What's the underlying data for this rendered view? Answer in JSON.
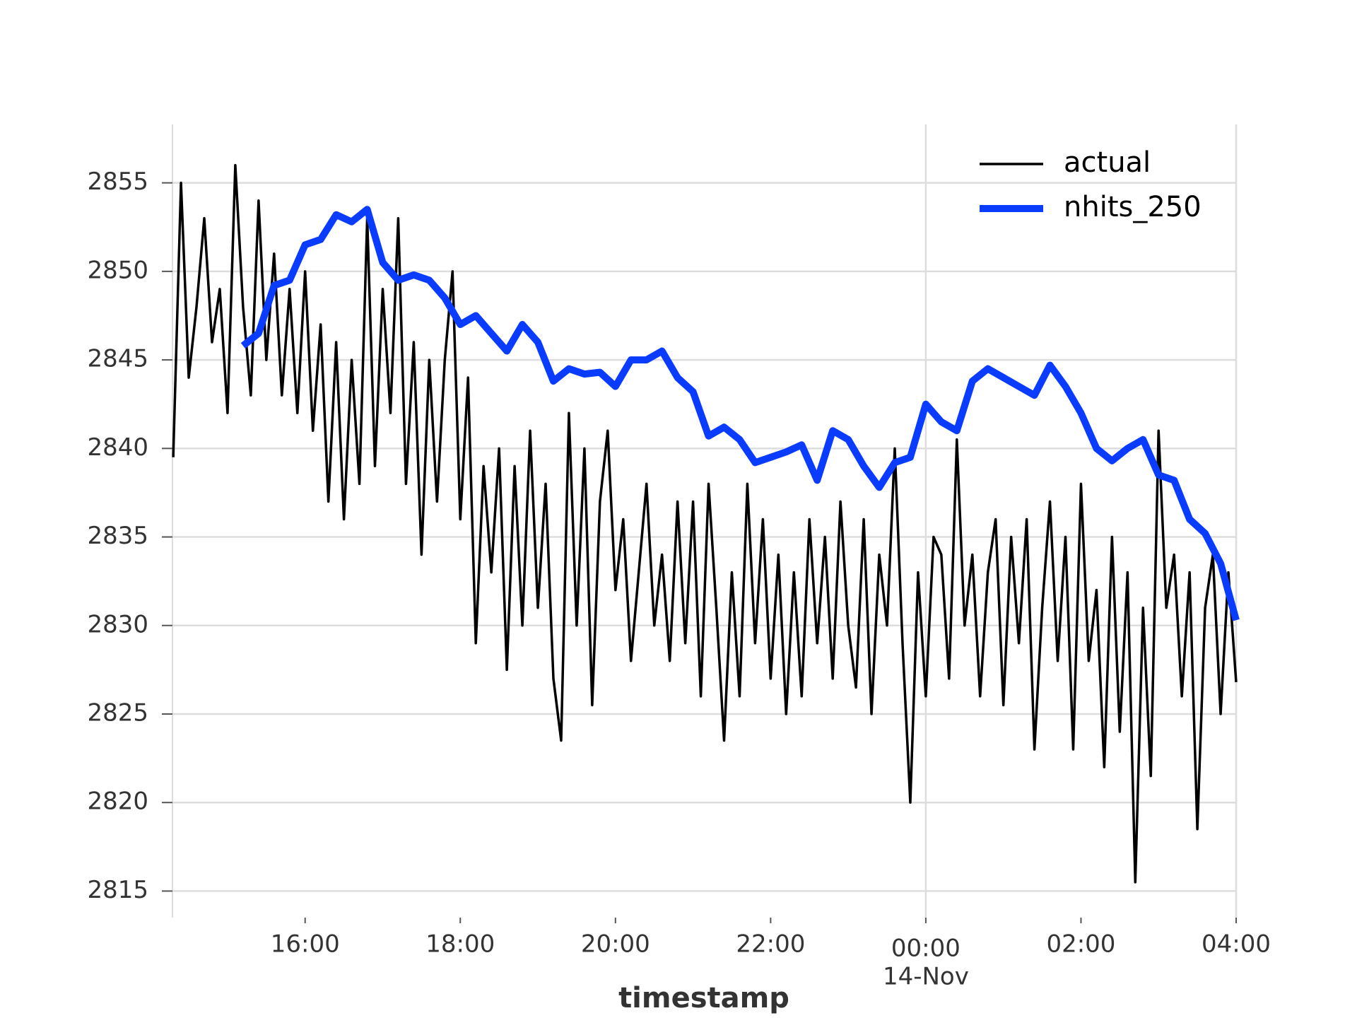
{
  "chart_data": {
    "type": "line",
    "xlabel": "timestamp",
    "xlim": [
      14.29,
      28.0
    ],
    "ylim": [
      2813.5,
      2858.3
    ],
    "xticks": [
      {
        "value": 16,
        "label": "16:00"
      },
      {
        "value": 18,
        "label": "18:00"
      },
      {
        "value": 20,
        "label": "20:00"
      },
      {
        "value": 22,
        "label": "22:00"
      },
      {
        "value": 24,
        "label": "00:00",
        "sublabel": "14-Nov"
      },
      {
        "value": 26,
        "label": "02:00"
      },
      {
        "value": 28,
        "label": "04:00"
      }
    ],
    "yticks": [
      2815,
      2820,
      2825,
      2830,
      2835,
      2840,
      2845,
      2850,
      2855
    ],
    "grid": true,
    "legend": "upper right",
    "series": [
      {
        "name": "actual",
        "color": "#000000",
        "x": [
          14.3,
          14.4,
          14.5,
          14.6,
          14.7,
          14.8,
          14.9,
          15.0,
          15.1,
          15.2,
          15.3,
          15.4,
          15.5,
          15.6,
          15.7,
          15.8,
          15.9,
          16.0,
          16.1,
          16.2,
          16.3,
          16.4,
          16.5,
          16.6,
          16.7,
          16.8,
          16.9,
          17.0,
          17.1,
          17.2,
          17.3,
          17.4,
          17.5,
          17.6,
          17.7,
          17.8,
          17.9,
          18.0,
          18.1,
          18.2,
          18.3,
          18.4,
          18.5,
          18.6,
          18.7,
          18.8,
          18.9,
          19.0,
          19.1,
          19.2,
          19.3,
          19.4,
          19.5,
          19.6,
          19.7,
          19.8,
          19.9,
          20.0,
          20.1,
          20.2,
          20.3,
          20.4,
          20.5,
          20.6,
          20.7,
          20.8,
          20.9,
          21.0,
          21.1,
          21.2,
          21.3,
          21.4,
          21.5,
          21.6,
          21.7,
          21.8,
          21.9,
          22.0,
          22.1,
          22.2,
          22.3,
          22.4,
          22.5,
          22.6,
          22.7,
          22.8,
          22.9,
          23.0,
          23.1,
          23.2,
          23.3,
          23.4,
          23.5,
          23.6,
          23.7,
          23.8,
          23.9,
          24.0,
          24.1,
          24.2,
          24.3,
          24.4,
          24.5,
          24.6,
          24.7,
          24.8,
          24.9,
          25.0,
          25.1,
          25.2,
          25.3,
          25.4,
          25.5,
          25.6,
          25.7,
          25.8,
          25.9,
          26.0,
          26.1,
          26.2,
          26.3,
          26.4,
          26.5,
          26.6,
          26.7,
          26.8,
          26.9,
          27.0,
          27.1,
          27.2,
          27.3,
          27.4,
          27.5,
          27.6,
          27.7,
          27.8,
          27.9,
          28.0
        ],
        "values": [
          2839.5,
          2855,
          2844,
          2848,
          2853,
          2846,
          2849,
          2842,
          2856,
          2848,
          2843,
          2854,
          2845,
          2851,
          2843,
          2849,
          2842,
          2850,
          2841,
          2847,
          2837,
          2846,
          2836,
          2845,
          2838,
          2853,
          2839,
          2849,
          2842,
          2853,
          2838,
          2846,
          2834,
          2845,
          2837,
          2845,
          2850,
          2836,
          2844,
          2829,
          2839,
          2833,
          2840,
          2827.5,
          2839,
          2830,
          2841,
          2831,
          2838,
          2827,
          2823.5,
          2842,
          2830,
          2840,
          2825.5,
          2837,
          2841,
          2832,
          2836,
          2828,
          2833,
          2838,
          2830,
          2834,
          2828,
          2837,
          2829,
          2837,
          2826,
          2838,
          2831,
          2823.5,
          2833,
          2826,
          2838,
          2829,
          2836,
          2827,
          2834,
          2825,
          2833,
          2826,
          2836,
          2829,
          2835,
          2827,
          2837,
          2830,
          2826.5,
          2836,
          2825,
          2834,
          2830,
          2840,
          2829,
          2820,
          2833,
          2826,
          2835,
          2834,
          2827,
          2840.5,
          2830,
          2834,
          2826,
          2833,
          2836,
          2825.5,
          2835,
          2829,
          2836,
          2823,
          2831,
          2837,
          2828,
          2835,
          2823,
          2838,
          2828,
          2832,
          2822,
          2835,
          2824,
          2833,
          2815.5,
          2831,
          2821.5,
          2841,
          2831,
          2834,
          2826,
          2833,
          2818.5,
          2831,
          2834,
          2825,
          2833,
          2826.8
        ]
      },
      {
        "name": "nhits_250",
        "color": "#0a3cff",
        "x": [
          15.2,
          15.4,
          15.6,
          15.8,
          16.0,
          16.2,
          16.4,
          16.6,
          16.8,
          17.0,
          17.2,
          17.4,
          17.6,
          17.8,
          18.0,
          18.2,
          18.4,
          18.6,
          18.8,
          19.0,
          19.2,
          19.4,
          19.6,
          19.8,
          20.0,
          20.2,
          20.4,
          20.6,
          20.8,
          21.0,
          21.2,
          21.4,
          21.6,
          21.8,
          22.0,
          22.2,
          22.4,
          22.6,
          22.8,
          23.0,
          23.2,
          23.4,
          23.6,
          23.8,
          24.0,
          24.2,
          24.4,
          24.6,
          24.8,
          25.0,
          25.2,
          25.4,
          25.6,
          25.8,
          26.0,
          26.2,
          26.4,
          26.6,
          26.8,
          27.0,
          27.2,
          27.4,
          27.6,
          27.8,
          28.0
        ],
        "values": [
          2845.8,
          2846.5,
          2849.2,
          2849.5,
          2851.5,
          2851.8,
          2853.2,
          2852.8,
          2853.5,
          2850.5,
          2849.5,
          2849.8,
          2849.5,
          2848.5,
          2847,
          2847.5,
          2846.5,
          2845.5,
          2847,
          2846,
          2843.8,
          2844.5,
          2844.2,
          2844.3,
          2843.5,
          2845,
          2845,
          2845.5,
          2844,
          2843.2,
          2840.7,
          2841.2,
          2840.5,
          2839.2,
          2839.5,
          2839.8,
          2840.2,
          2838.2,
          2841,
          2840.5,
          2839,
          2837.8,
          2839.2,
          2839.5,
          2842.5,
          2841.5,
          2841,
          2843.8,
          2844.5,
          2844,
          2843.5,
          2843,
          2844.7,
          2843.5,
          2842,
          2840,
          2839.3,
          2840,
          2840.5,
          2838.5,
          2838.2,
          2836,
          2835.2,
          2833.5,
          2830.3
        ]
      }
    ]
  }
}
